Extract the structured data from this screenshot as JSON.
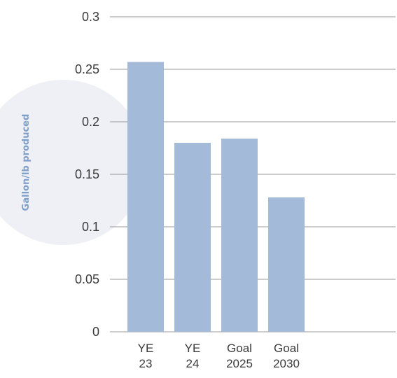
{
  "colors": {
    "bar": "#a3bad9",
    "grid": "#9a9a9a",
    "badge": "#eef0f5",
    "ytitle": "#7d9fcb"
  },
  "chart_data": {
    "type": "bar",
    "categories": [
      [
        "YE",
        "23"
      ],
      [
        "YE",
        "24"
      ],
      [
        "Goal",
        "2025"
      ],
      [
        "Goal",
        "2030"
      ]
    ],
    "values": [
      0.257,
      0.18,
      0.184,
      0.128
    ],
    "ylabel": "Gallon/lb produced",
    "ylim": [
      0,
      0.3
    ],
    "yticks": [
      {
        "value": 0,
        "label": "0"
      },
      {
        "value": 0.05,
        "label": "0.05"
      },
      {
        "value": 0.1,
        "label": "0.1"
      },
      {
        "value": 0.15,
        "label": "0.15"
      },
      {
        "value": 0.2,
        "label": "0.2"
      },
      {
        "value": 0.25,
        "label": "0.25"
      },
      {
        "value": 0.3,
        "label": "0.3"
      }
    ],
    "grid": true
  }
}
